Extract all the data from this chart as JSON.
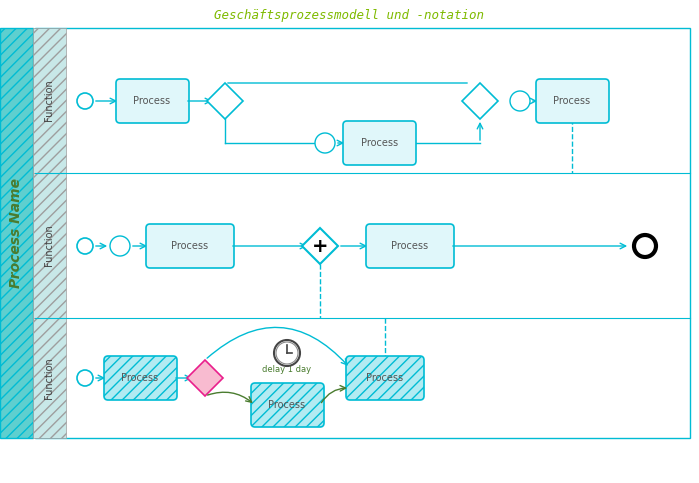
{
  "title": "Geschäftsprozessmodell und -notation",
  "title_color": "#7FBA00",
  "title_fontsize": 9,
  "bg_color": "#ffffff",
  "lane_bg": "#f0f8ff",
  "process_name": "Process Name",
  "process_name_color": "#4a7c2f",
  "function_label": "Function",
  "lane_header_bg": "#b0d8d8",
  "lane_header_hatch": "/",
  "process_name_bg": "#5ec8c8",
  "process_name_hatch": "/",
  "cyan": "#00bcd4",
  "light_cyan": "#e0f7fa",
  "green": "#4a7c2f",
  "pink": "#f48fb1",
  "gray": "#9e9e9e",
  "black": "#000000",
  "white": "#ffffff",
  "lane_border": "#00bcd4",
  "process_box_color": "#e0f7fa",
  "process_box_border": "#00bcd4",
  "dashed_cyan": "#00bcd4"
}
